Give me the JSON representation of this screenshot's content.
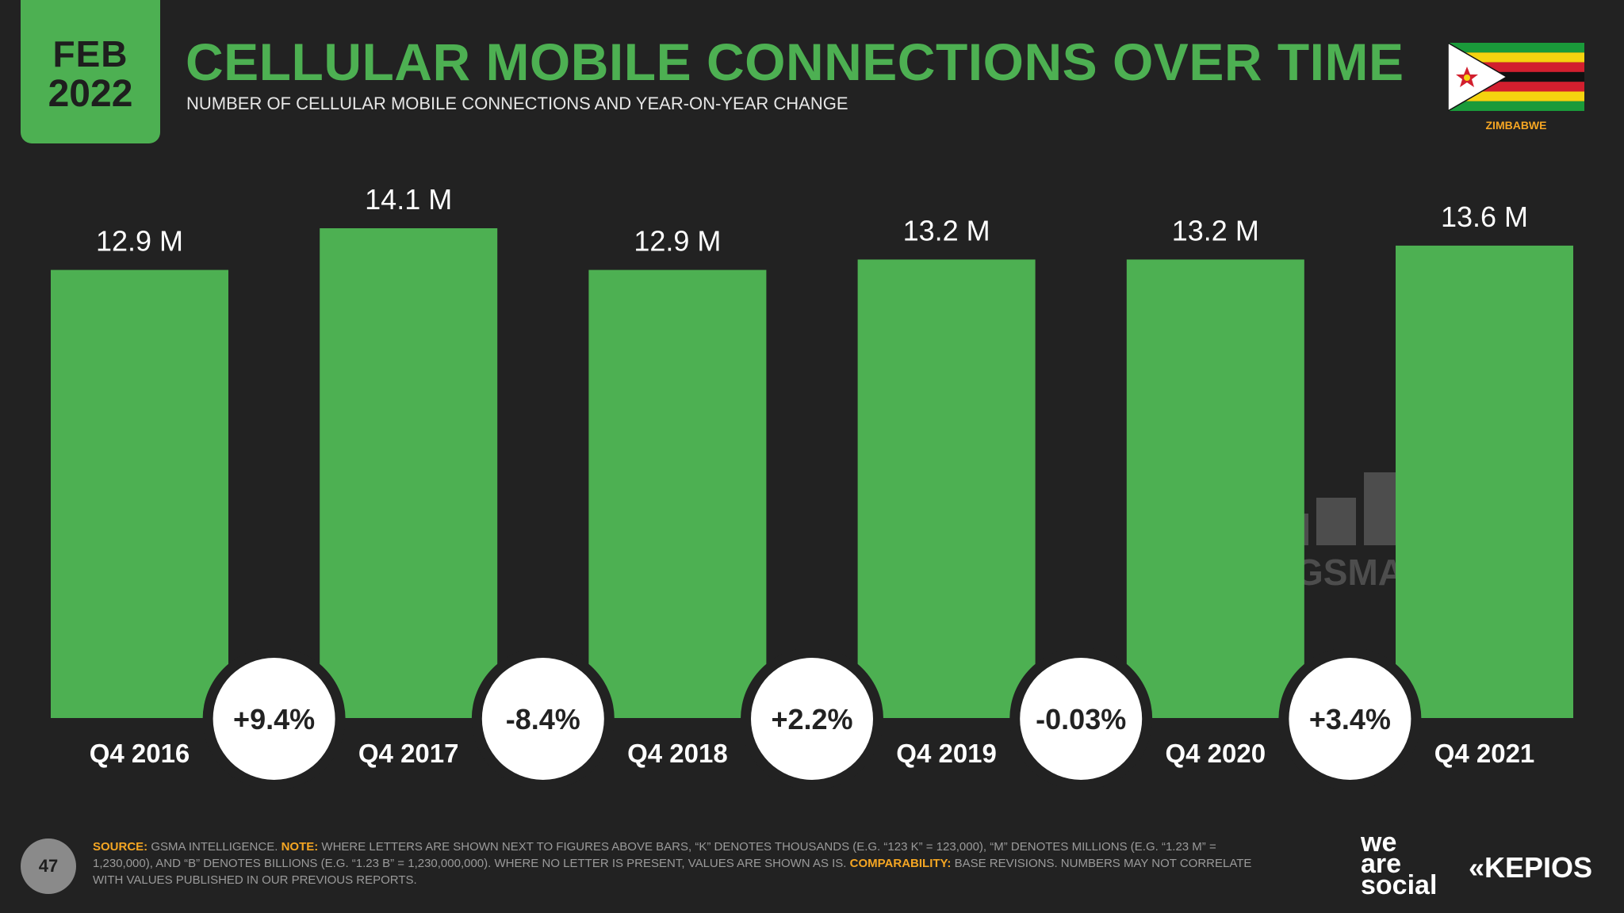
{
  "header": {
    "month": "FEB",
    "year": "2022",
    "title": "CELLULAR MOBILE CONNECTIONS OVER TIME",
    "subtitle": "NUMBER OF CELLULAR MOBILE CONNECTIONS AND YEAR-ON-YEAR CHANGE",
    "country": "ZIMBABWE"
  },
  "colors": {
    "accent": "#4db052",
    "background": "#222222",
    "highlight": "#f5a623"
  },
  "chart_data": {
    "type": "bar",
    "title": "CELLULAR MOBILE CONNECTIONS OVER TIME",
    "categories": [
      "Q4 2016",
      "Q4 2017",
      "Q4 2018",
      "Q4 2019",
      "Q4 2020",
      "Q4 2021"
    ],
    "values": [
      12.9,
      14.1,
      12.9,
      13.2,
      13.2,
      13.6
    ],
    "value_labels": [
      "12.9 M",
      "14.1 M",
      "12.9 M",
      "13.2 M",
      "13.2 M",
      "13.6 M"
    ],
    "unit": "M",
    "changes": [
      "+9.4%",
      "-8.4%",
      "+2.2%",
      "-0.03%",
      "+3.4%"
    ],
    "ylim": [
      0,
      14.1
    ],
    "xlabel": "",
    "ylabel": ""
  },
  "watermark": "GSMA",
  "footer": {
    "page_number": "47",
    "source_label": "SOURCE:",
    "source_text": "GSMA INTELLIGENCE.",
    "note_label": "NOTE:",
    "note_text": "WHERE LETTERS ARE SHOWN NEXT TO FIGURES ABOVE BARS, “K” DENOTES THOUSANDS (E.G. “123 K” = 123,000), “M” DENOTES MILLIONS (E.G. “1.23 M” = 1,230,000), AND “B” DENOTES BILLIONS (E.G. “1.23 B” = 1,230,000,000). WHERE NO LETTER IS PRESENT, VALUES ARE SHOWN AS IS.",
    "comparability_label": "COMPARABILITY:",
    "comparability_text": "BASE REVISIONS. NUMBERS MAY NOT CORRELATE WITH VALUES PUBLISHED IN OUR PREVIOUS REPORTS."
  },
  "logos": {
    "we": "we",
    "are": "are",
    "social": "social",
    "kepios": "KEPIOS"
  }
}
